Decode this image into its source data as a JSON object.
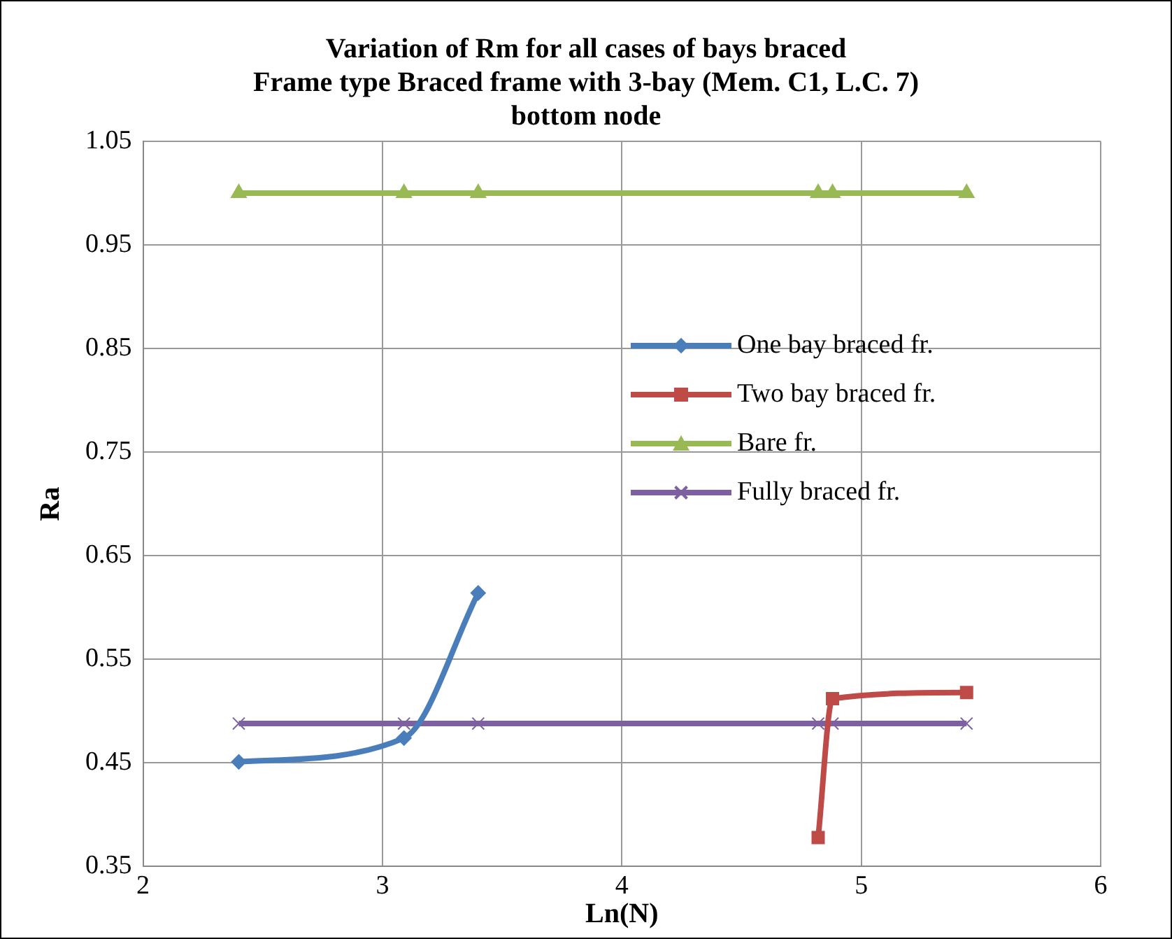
{
  "chart_data": {
    "type": "line",
    "title": "Variation of Rm for all cases of bays braced\nFrame type Braced frame with 3-bay (Mem. C1, L.C. 7)\nbottom node",
    "xlabel": "Ln(N)",
    "ylabel": "Ra",
    "xlim": [
      2,
      6
    ],
    "xticks": [
      2,
      3,
      4,
      5,
      6
    ],
    "ylim": [
      0.35,
      1.05
    ],
    "yticks": [
      0.35,
      0.45,
      0.55,
      0.65,
      0.75,
      0.85,
      0.95,
      1.05
    ],
    "grid": true,
    "legend": "right",
    "series": [
      {
        "name": "One bay braced fr.",
        "color": "#4a7ebb",
        "marker": "diamond",
        "x": [
          2.4,
          3.09,
          3.4
        ],
        "values": [
          0.451,
          0.474,
          0.614
        ]
      },
      {
        "name": "Two bay braced fr.",
        "color": "#be4b48",
        "marker": "square",
        "x": [
          4.82,
          4.88,
          5.44
        ],
        "values": [
          0.378,
          0.512,
          0.518
        ]
      },
      {
        "name": "Bare fr.",
        "color": "#98b954",
        "marker": "triangle",
        "x": [
          2.4,
          3.09,
          3.4,
          4.82,
          4.88,
          5.44
        ],
        "values": [
          1.0,
          1.0,
          1.0,
          1.0,
          1.0,
          1.0
        ]
      },
      {
        "name": "Fully braced fr.",
        "color": "#7d60a0",
        "marker": "cross",
        "x": [
          2.4,
          3.09,
          3.4,
          4.82,
          4.88,
          5.44
        ],
        "values": [
          0.488,
          0.488,
          0.488,
          0.488,
          0.488,
          0.488
        ]
      }
    ]
  }
}
